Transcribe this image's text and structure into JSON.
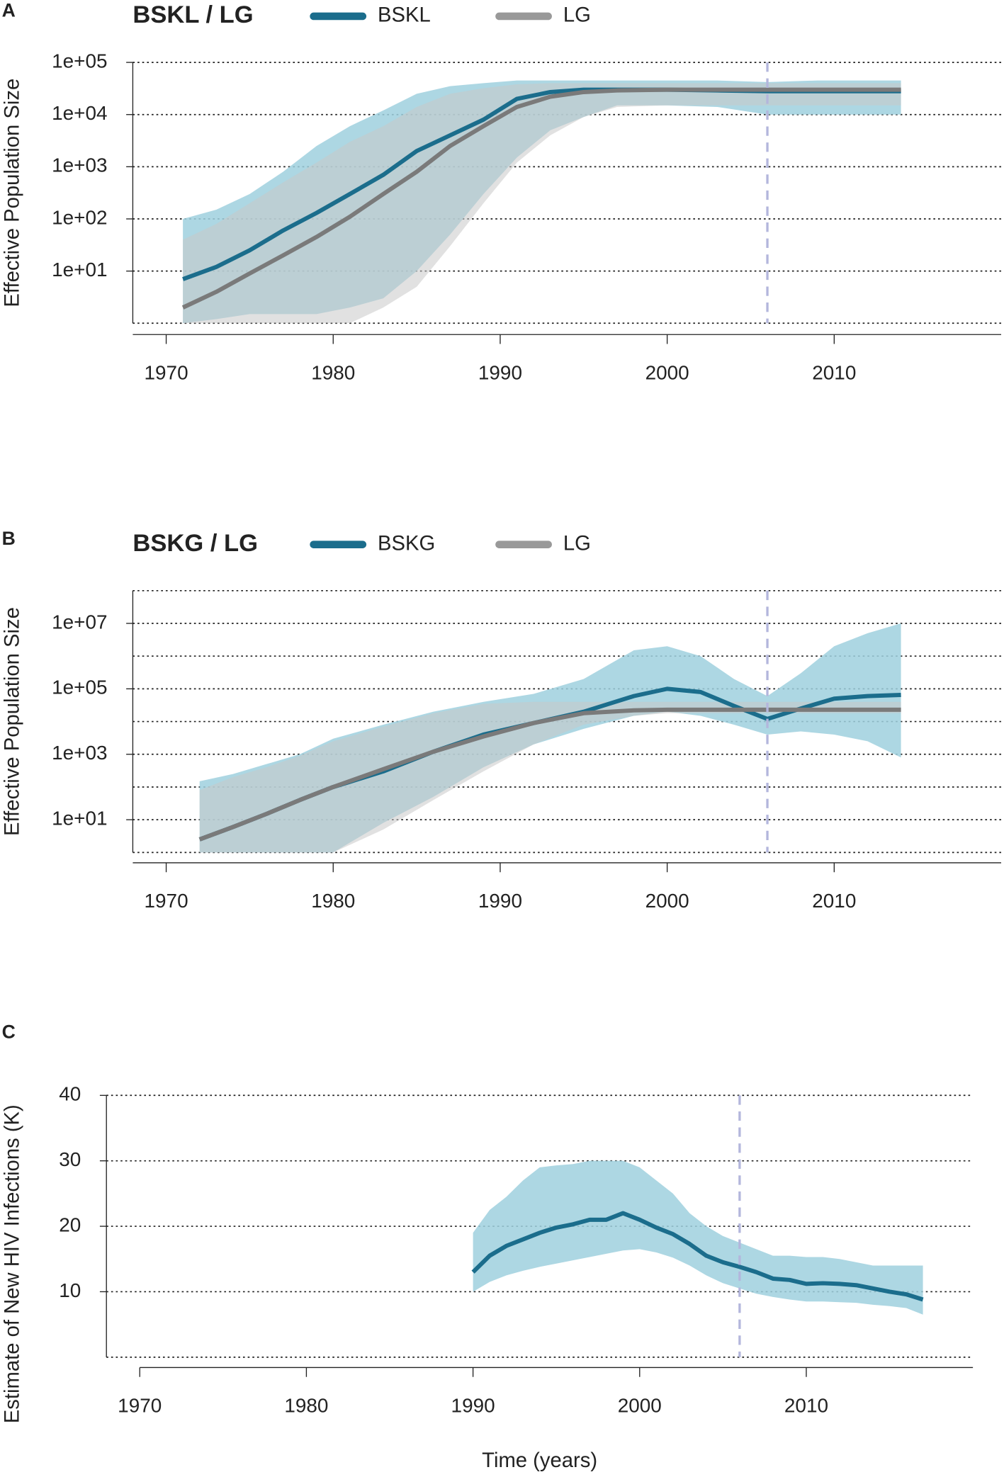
{
  "chart_data": [
    {
      "type": "line",
      "panel": "A",
      "title": "BSKL / LG",
      "ylabel": "Effective Population Size",
      "log": true,
      "xlim": [
        1968,
        2020
      ],
      "xticks": [
        1970,
        1980,
        1990,
        2000,
        2010
      ],
      "ylim": [
        1,
        100000
      ],
      "yticks": [
        {
          "value": 10,
          "label": "1e+01"
        },
        {
          "value": 100,
          "label": "1e+02"
        },
        {
          "value": 1000,
          "label": "1e+03"
        },
        {
          "value": 10000,
          "label": "1e+04"
        },
        {
          "value": 100000,
          "label": "1e+05"
        }
      ],
      "ygrid": [
        1,
        10,
        100,
        1000,
        10000,
        100000
      ],
      "vline": 2006,
      "x": [
        1971,
        1973,
        1975,
        1977,
        1979,
        1981,
        1983,
        1985,
        1987,
        1989,
        1991,
        1993,
        1995,
        1997,
        2000,
        2003,
        2006,
        2009,
        2012,
        2014
      ],
      "series": [
        {
          "name": "BSKL",
          "color": "#1b6d8c",
          "band_color": "#9fd0de",
          "values": [
            7,
            12,
            25,
            60,
            130,
            300,
            700,
            2000,
            4000,
            8000,
            20000,
            27000,
            30000,
            30000,
            30000,
            29000,
            28000,
            28000,
            28000,
            28000
          ],
          "upper": [
            100,
            150,
            300,
            800,
            2500,
            6000,
            12000,
            25000,
            35000,
            40000,
            45000,
            45000,
            45000,
            45000,
            45000,
            45000,
            42000,
            45000,
            45000,
            45000
          ],
          "lower": [
            1,
            1.2,
            1.5,
            1.5,
            1.5,
            2,
            3,
            10,
            50,
            300,
            1500,
            5000,
            9000,
            15000,
            15000,
            14000,
            10000,
            10000,
            10000,
            10000
          ]
        },
        {
          "name": "LG",
          "color": "#7a7a7a",
          "band_color": "#c8c8c8",
          "values": [
            2,
            4,
            9,
            20,
            45,
            110,
            300,
            800,
            2500,
            6000,
            14000,
            22000,
            27000,
            29000,
            30000,
            30000,
            30000,
            30000,
            30000,
            30000
          ],
          "upper": [
            40,
            80,
            200,
            500,
            1200,
            3000,
            6000,
            14000,
            25000,
            32000,
            38000,
            40000,
            40000,
            40000,
            40000,
            40000,
            40000,
            40000,
            40000,
            40000
          ],
          "lower": [
            0.5,
            0.5,
            0.5,
            0.5,
            0.5,
            1,
            2,
            5,
            30,
            200,
            1200,
            4000,
            9000,
            14000,
            15000,
            15000,
            15000,
            15000,
            15000,
            15000
          ]
        }
      ]
    },
    {
      "type": "line",
      "panel": "B",
      "title": "BSKG / LG",
      "ylabel": "Effective Population Size",
      "log": true,
      "xlim": [
        1968,
        2020
      ],
      "xticks": [
        1970,
        1980,
        1990,
        2000,
        2010
      ],
      "ylim": [
        1,
        100000000
      ],
      "yticks": [
        {
          "value": 10,
          "label": "1e+01"
        },
        {
          "value": 1000,
          "label": "1e+03"
        },
        {
          "value": 100000,
          "label": "1e+05"
        },
        {
          "value": 10000000,
          "label": "1e+07"
        }
      ],
      "ygrid": [
        1,
        10,
        100,
        1000,
        10000,
        100000,
        1000000,
        10000000,
        100000000
      ],
      "vline": 2006,
      "x": [
        1972,
        1974,
        1976,
        1978,
        1980,
        1983,
        1986,
        1989,
        1992,
        1995,
        1998,
        2000,
        2002,
        2004,
        2006,
        2008,
        2010,
        2012,
        2014
      ],
      "series": [
        {
          "name": "BSKG",
          "color": "#1b6d8c",
          "band_color": "#9fd0de",
          "values": [
            2.5,
            6,
            15,
            40,
            100,
            300,
            1200,
            4000,
            9000,
            20000,
            60000,
            100000,
            80000,
            30000,
            12000,
            25000,
            50000,
            60000,
            65000
          ],
          "upper": [
            150,
            250,
            500,
            1000,
            3000,
            8000,
            20000,
            40000,
            70000,
            200000,
            1500000,
            2000000,
            1000000,
            200000,
            60000,
            300000,
            2000000,
            5000000,
            10000000
          ],
          "lower": [
            0.3,
            0.3,
            0.3,
            0.3,
            1,
            8,
            50,
            400,
            2000,
            6000,
            15000,
            20000,
            15000,
            8000,
            4000,
            5000,
            4000,
            2500,
            800
          ]
        },
        {
          "name": "LG",
          "color": "#7a7a7a",
          "band_color": "#c8c8c8",
          "values": [
            2.5,
            6,
            15,
            40,
            100,
            350,
            1200,
            3500,
            9000,
            18000,
            22000,
            23000,
            23000,
            23000,
            23000,
            23000,
            23000,
            23000,
            23000
          ],
          "upper": [
            80,
            200,
            400,
            900,
            2500,
            7000,
            18000,
            35000,
            40000,
            40000,
            40000,
            40000,
            40000,
            40000,
            40000,
            40000,
            40000,
            40000,
            40000
          ],
          "lower": [
            0.3,
            0.3,
            0.3,
            0.3,
            1,
            5,
            40,
            300,
            2000,
            8000,
            15000,
            18000,
            18000,
            18000,
            18000,
            18000,
            18000,
            18000,
            18000
          ]
        }
      ]
    },
    {
      "type": "line",
      "panel": "C",
      "ylabel": "Estimate of New HIV Infections (K)",
      "xlabel": "Time (years)",
      "log": false,
      "xlim": [
        1968,
        2020
      ],
      "xticks": [
        1970,
        1980,
        1990,
        2000,
        2010
      ],
      "ylim": [
        0,
        40
      ],
      "yticks": [
        10,
        20,
        30,
        40
      ],
      "ygrid": [
        0,
        10,
        20,
        30,
        40
      ],
      "vline": 2006,
      "x": [
        1990,
        1991,
        1992,
        1993,
        1994,
        1995,
        1996,
        1997,
        1998,
        1999,
        2000,
        2001,
        2002,
        2003,
        2004,
        2005,
        2006,
        2007,
        2008,
        2009,
        2010,
        2011,
        2012,
        2013,
        2014,
        2015,
        2016,
        2017
      ],
      "series": [
        {
          "color": "#1b6d8c",
          "band_color": "#9fd0de",
          "values": [
            13,
            15.5,
            17,
            18,
            19,
            19.8,
            20.3,
            21,
            21,
            22,
            21,
            19.8,
            18.8,
            17.3,
            15.5,
            14.5,
            13.8,
            13,
            12,
            11.8,
            11.2,
            11.3,
            11.2,
            11,
            10.5,
            10,
            9.6,
            8.8
          ],
          "upper": [
            19,
            22.5,
            24.5,
            27,
            29,
            29.3,
            29.5,
            30,
            30,
            30,
            29,
            27,
            25,
            22,
            20,
            18.5,
            17.5,
            16.5,
            15.5,
            15.5,
            15.3,
            15.3,
            15,
            14.5,
            14,
            14,
            14,
            14
          ],
          "lower": [
            10,
            11.5,
            12.5,
            13.2,
            13.8,
            14.3,
            14.8,
            15.3,
            15.8,
            16.3,
            16.5,
            16,
            15.2,
            14,
            12.5,
            11.3,
            10.5,
            9.7,
            9.2,
            8.8,
            8.5,
            8.5,
            8.4,
            8.3,
            8,
            7.8,
            7.5,
            6.5
          ]
        }
      ]
    }
  ]
}
